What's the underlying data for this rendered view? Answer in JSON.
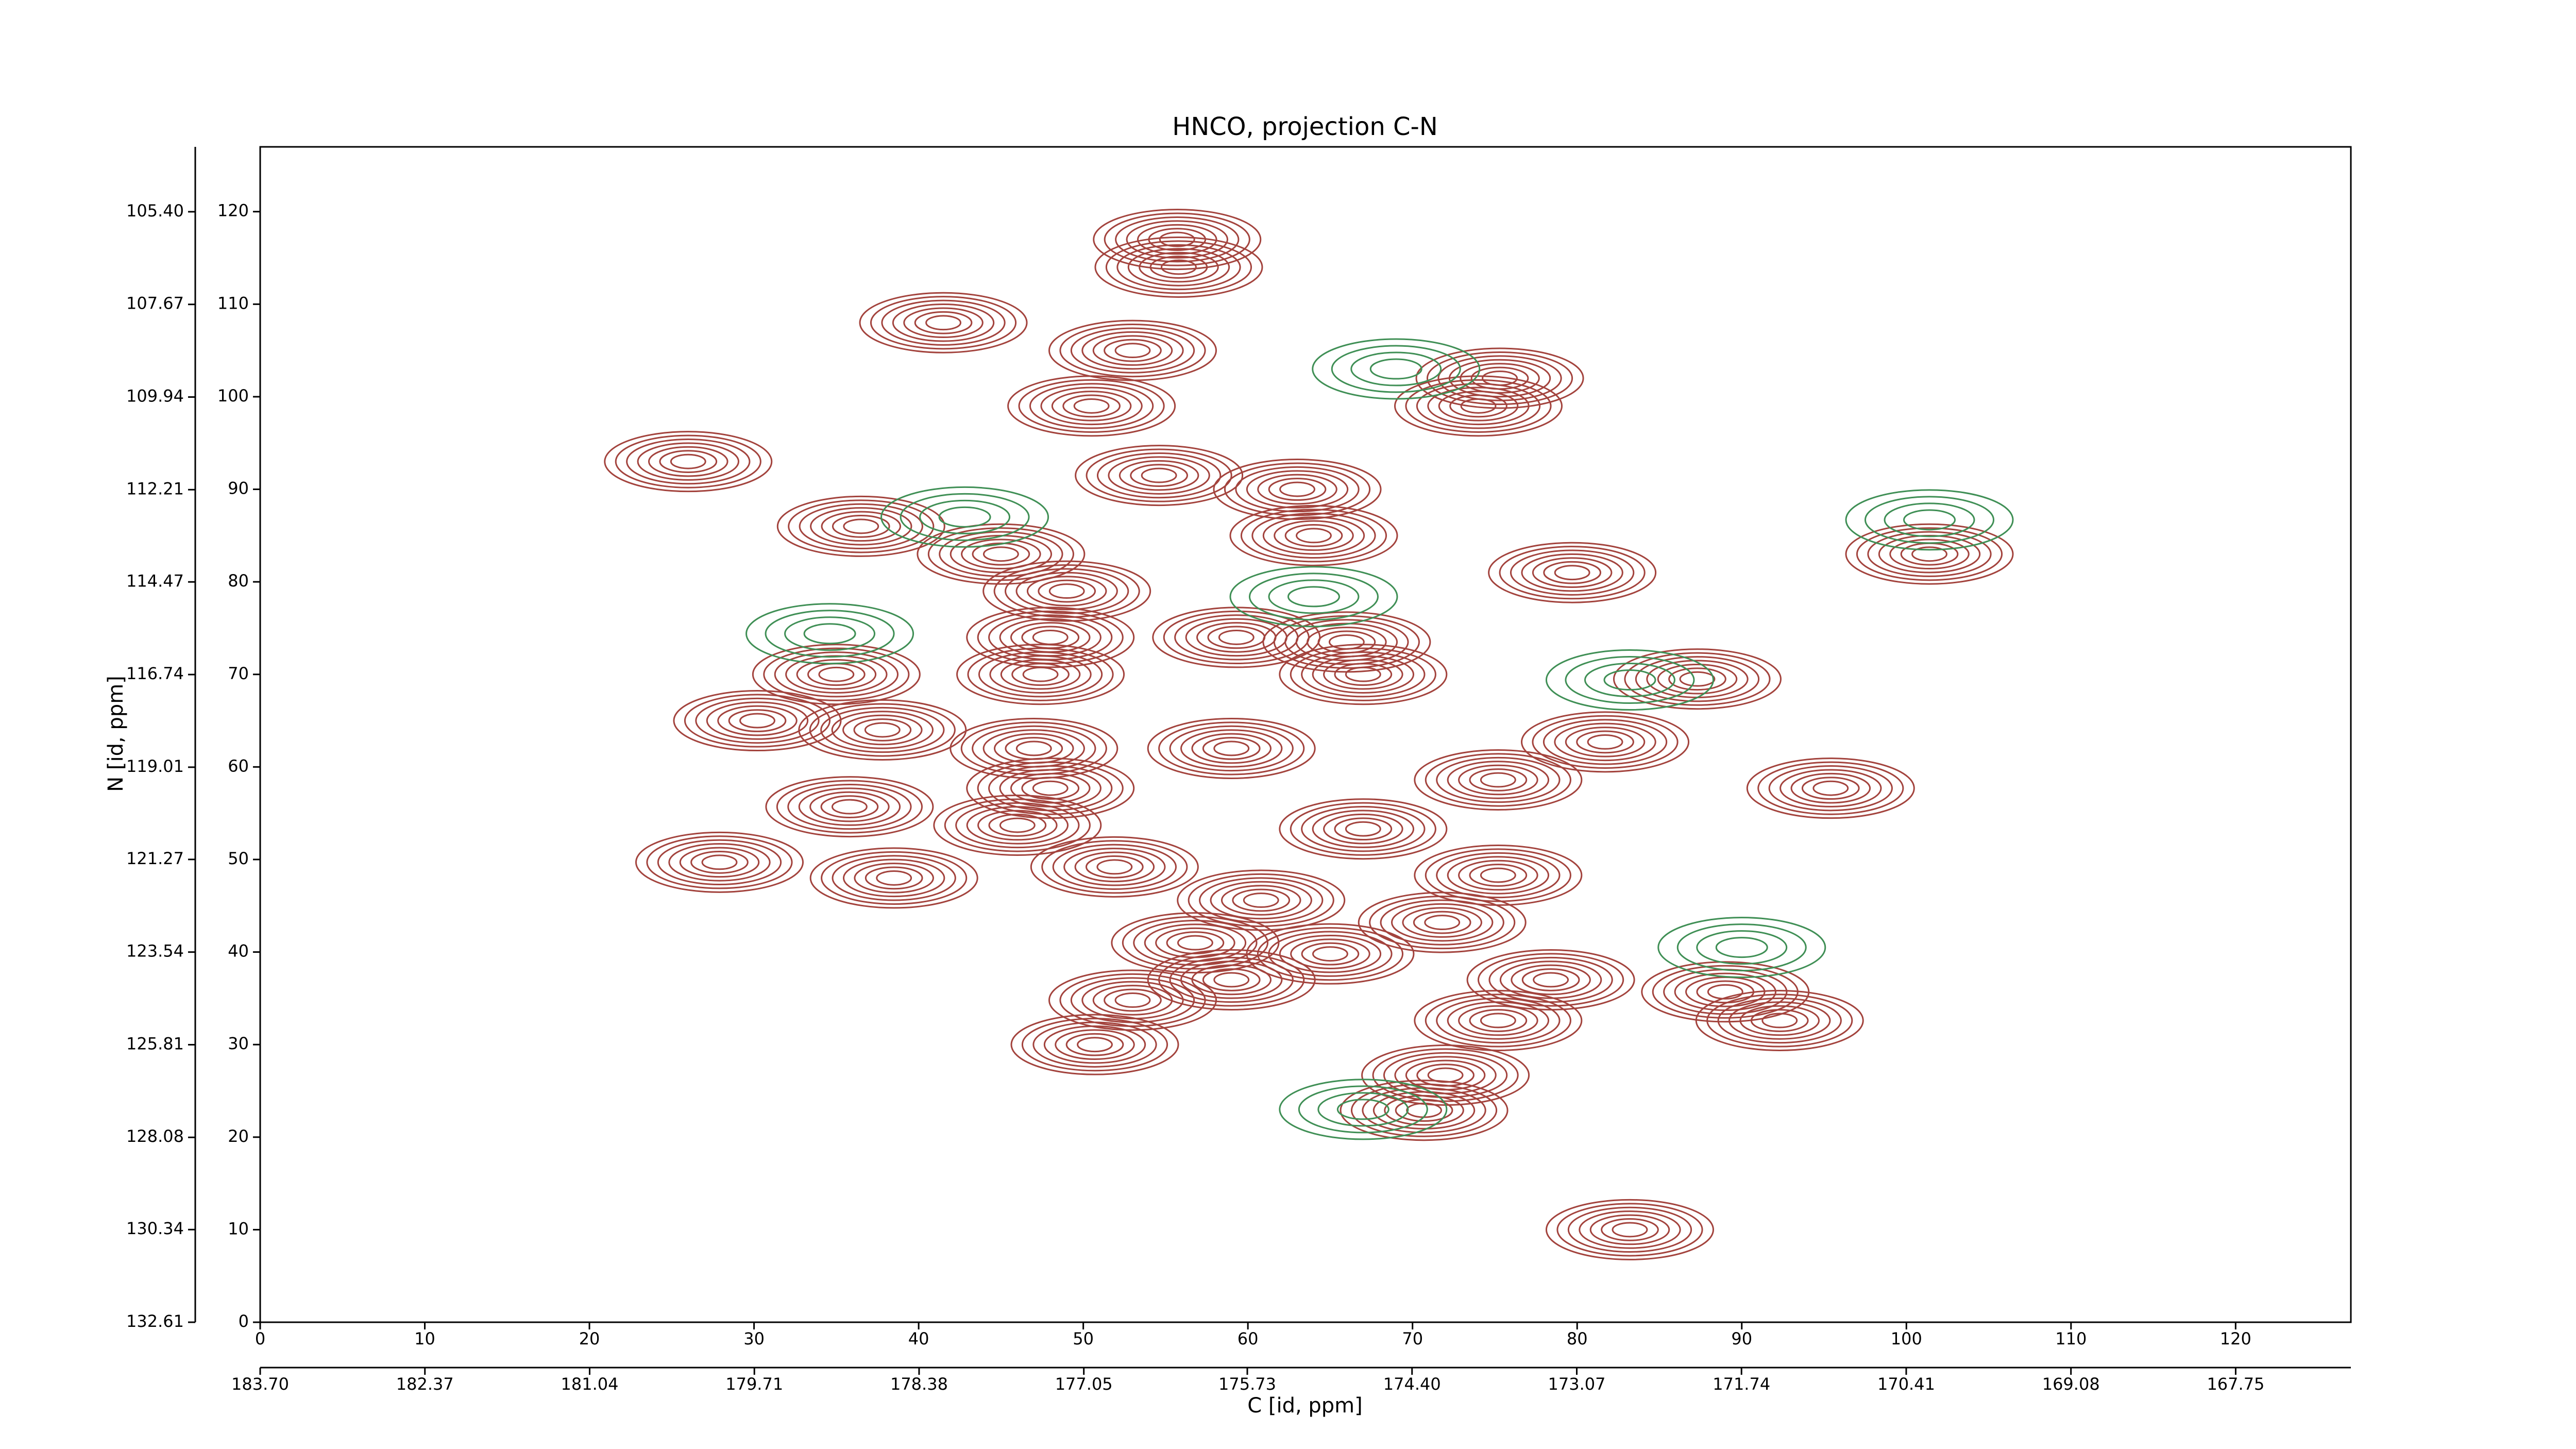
{
  "chart_data": {
    "type": "contour",
    "title": "HNCO, projection C-N",
    "xlabel": "C [id, ppm]",
    "ylabel": "N [id, ppm]",
    "xlim": [
      0,
      127
    ],
    "ylim": [
      0,
      127
    ],
    "xticks": [
      0,
      10,
      20,
      30,
      40,
      50,
      60,
      70,
      80,
      90,
      100,
      110,
      120
    ],
    "yticks": [
      0,
      10,
      20,
      30,
      40,
      50,
      60,
      70,
      80,
      90,
      100,
      110,
      120
    ],
    "x2lim": [
      183.7,
      166.82
    ],
    "x2ticks": [
      {
        "value": 183.7,
        "label": "183.70"
      },
      182.37,
      181.04,
      179.71,
      178.38,
      177.05,
      175.73,
      {
        "value": 174.4,
        "label": "174.40"
      },
      173.07,
      171.74,
      170.41,
      169.08,
      167.75
    ],
    "y2lim": [
      132.61,
      103.81
    ],
    "y2ticks": [
      132.61,
      130.34,
      128.08,
      125.81,
      123.54,
      121.27,
      119.01,
      116.74,
      114.47,
      112.21,
      109.94,
      107.67,
      {
        "value": 105.4,
        "label": "105.40"
      }
    ],
    "series": [
      {
        "color": "#a3433d",
        "x": [
          55.7,
          55.8,
          53,
          41.5,
          50.5,
          75.3,
          74,
          26,
          54.6,
          63,
          36.5,
          45,
          64,
          79.7,
          101.4,
          49,
          59.3,
          48,
          66,
          35,
          47.4,
          67,
          87.3,
          30.2,
          37.8,
          59,
          81.7,
          47,
          35.8,
          75.2,
          95.4,
          48,
          46,
          67,
          27.9,
          38.5,
          51.9,
          75.2,
          60.8,
          71.8,
          56.8,
          65,
          59,
          78.4,
          89,
          75.2,
          92.3,
          50.7,
          53,
          72,
          70.7,
          83.2
        ],
        "y": [
          117,
          114,
          105,
          108,
          99,
          102,
          99,
          93,
          91.5,
          90,
          86,
          83,
          85,
          81,
          83,
          79,
          74,
          74,
          73.5,
          70,
          70,
          70,
          69.5,
          65,
          64,
          62,
          62.7,
          62,
          55.7,
          58.6,
          57.7,
          57.7,
          53.7,
          53.3,
          49.7,
          48,
          49.2,
          48.3,
          45.6,
          43.2,
          41,
          39.8,
          37,
          37,
          35.7,
          32.6,
          32.6,
          30,
          34.8,
          26.7,
          22.9,
          10
        ]
      },
      {
        "color": "#3f8f55",
        "x": [
          64,
          34.6,
          83.2,
          101.4,
          90,
          69,
          67,
          42.8
        ],
        "y": [
          78.4,
          74.4,
          69.4,
          86.7,
          40.5,
          103,
          23,
          87
        ]
      }
    ]
  }
}
